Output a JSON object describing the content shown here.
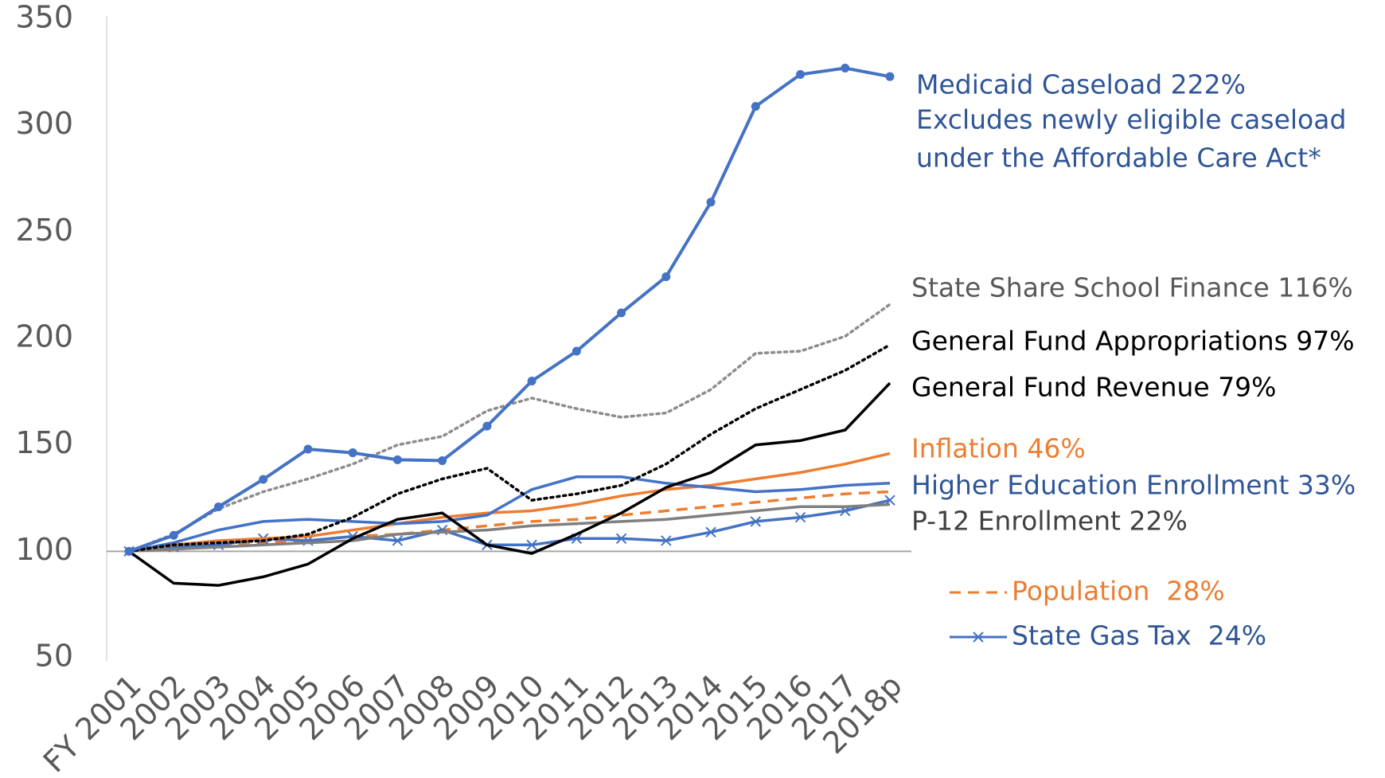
{
  "chart_data": {
    "type": "line",
    "categories": [
      "FY 2001",
      "2002",
      "2003",
      "2004",
      "2005",
      "2006",
      "2007",
      "2008",
      "2009",
      "2010",
      "2011",
      "2012",
      "2013",
      "2014",
      "2015",
      "2016",
      "2017",
      "2018p"
    ],
    "ylim": [
      50,
      350
    ],
    "yticks": [
      50,
      100,
      150,
      200,
      250,
      300,
      350
    ],
    "x_axis_at": 100,
    "series": [
      {
        "name": "Medicaid Caseload 222%",
        "color": "#4472c4",
        "label_color": "#2f5597",
        "dash": "solid",
        "marker": "circle",
        "values": [
          100,
          107.5,
          120.9,
          133.8,
          148,
          146.3,
          143,
          142.6,
          158.8,
          180,
          194,
          212,
          229,
          264,
          309,
          324,
          327,
          323
        ]
      },
      {
        "name": "State Share School Finance 116%",
        "color": "#8c8c8c",
        "label_color": "#595959",
        "dash": "dot",
        "marker": "none",
        "values": [
          100,
          108,
          120,
          128,
          134,
          141,
          150,
          154,
          166,
          172,
          167,
          163,
          165,
          176,
          193,
          194,
          201,
          216
        ]
      },
      {
        "name": "General Fund Appropriations 97%",
        "color": "#000000",
        "label_color": "#000000",
        "dash": "dot",
        "marker": "none",
        "values": [
          100,
          103,
          104,
          105,
          108,
          116,
          127,
          134,
          139,
          124,
          127,
          131,
          141,
          155,
          167,
          176,
          185,
          197
        ]
      },
      {
        "name": "General Fund Revenue 79%",
        "color": "#000000",
        "label_color": "#000000",
        "dash": "solid",
        "marker": "none",
        "values": [
          100,
          85,
          84,
          88,
          94,
          106,
          115,
          118,
          103,
          99,
          108,
          118,
          130,
          137,
          150,
          152,
          157,
          179
        ]
      },
      {
        "name": "Inflation 46%",
        "color": "#ed7d31",
        "label_color": "#ed7d31",
        "dash": "solid",
        "marker": "none",
        "values": [
          100,
          103,
          105,
          106,
          107,
          110,
          113,
          116,
          118,
          119,
          122,
          126,
          129,
          131,
          134,
          137,
          141,
          146
        ]
      },
      {
        "name": "Higher Education Enrollment 33%",
        "color": "#4472c4",
        "label_color": "#2f5597",
        "dash": "solid",
        "marker": "none",
        "values": [
          100,
          104,
          110,
          114,
          115,
          114,
          113,
          114,
          117,
          129,
          135,
          135,
          132,
          130,
          128,
          129,
          131,
          132
        ]
      },
      {
        "name": "P-12 Enrollment 22%",
        "color": "#7f7f7f",
        "label_color": "#404040",
        "dash": "solid",
        "marker": "none",
        "values": [
          100,
          101,
          102,
          103,
          104,
          105,
          108,
          109,
          110,
          112,
          113,
          114,
          115,
          117,
          119,
          121,
          121,
          122
        ]
      },
      {
        "name": "Population  28%",
        "color": "#ed7d31",
        "label_color": "#ed7d31",
        "dash": "dash",
        "marker": "none",
        "legend_swatch": true,
        "values": [
          100,
          102,
          103,
          104,
          105,
          107,
          108,
          110,
          112,
          114,
          115,
          117,
          119,
          121,
          123,
          125,
          127,
          128
        ]
      },
      {
        "name": "State Gas Tax  24%",
        "color": "#4472c4",
        "label_color": "#2f5597",
        "dash": "solid",
        "marker": "x",
        "legend_swatch": true,
        "values": [
          100,
          102,
          103,
          106,
          105,
          107,
          105,
          110,
          103,
          103,
          106,
          106,
          105,
          109,
          114,
          116,
          119,
          124
        ]
      }
    ],
    "annotations": [
      "Excludes newly eligible caseload",
      "under the Affordable Care Act*"
    ]
  }
}
